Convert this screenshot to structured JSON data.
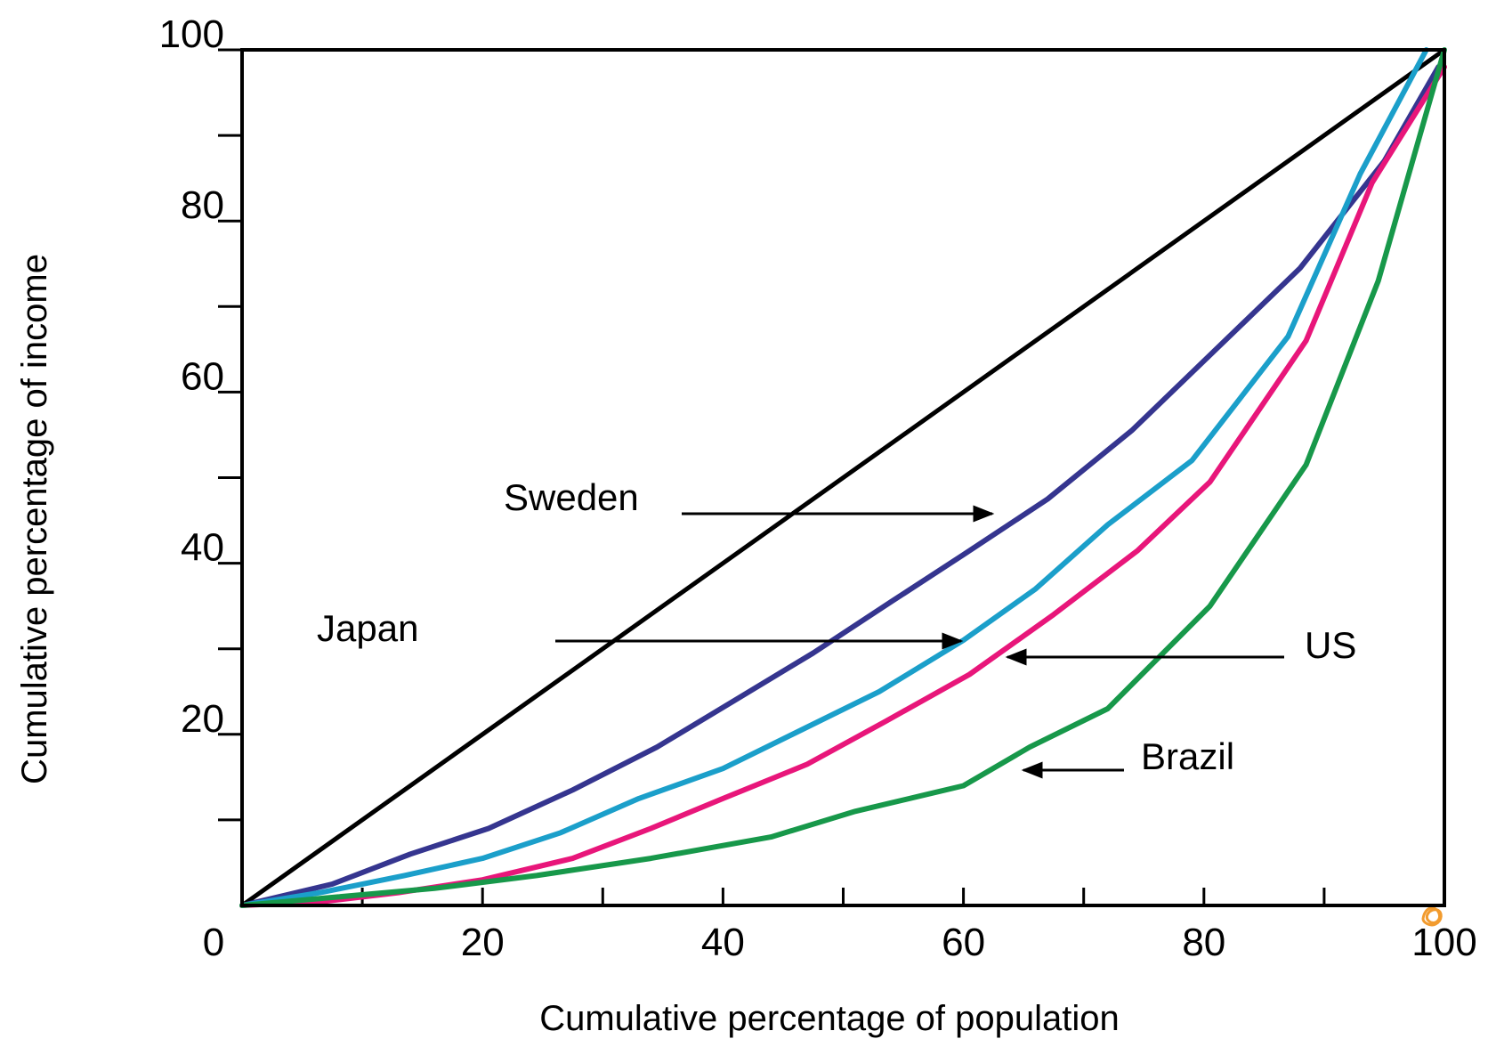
{
  "chart_data": {
    "type": "line",
    "title": "",
    "xlabel": "Cumulative percentage of population",
    "ylabel": "Cumulative percentage of income",
    "xlim": [
      0,
      100
    ],
    "ylim": [
      0,
      100
    ],
    "x_tick_labels": [
      "0",
      "20",
      "40",
      "60",
      "80",
      "100"
    ],
    "y_tick_labels": [
      "20",
      "40",
      "60",
      "80",
      "100"
    ],
    "x_minor_ticks": [
      10,
      20,
      30,
      40,
      50,
      60,
      70,
      80,
      90
    ],
    "y_minor_ticks": [
      10,
      20,
      30,
      40,
      50,
      60,
      70,
      80,
      90
    ],
    "grid": false,
    "series": [
      {
        "name": "",
        "color": "#000000",
        "x": [
          0,
          100
        ],
        "y": [
          0,
          100
        ]
      },
      {
        "name": "Sweden",
        "color": "#35358f",
        "x": [
          0,
          7.5,
          14,
          20.5,
          27.5,
          34.5,
          41,
          47.5,
          54,
          60,
          67,
          74,
          81,
          88,
          95,
          99.5
        ],
        "y": [
          0,
          2.5,
          6,
          9,
          13.5,
          18.5,
          24,
          29.5,
          35.5,
          41,
          47.5,
          55.5,
          65,
          74.5,
          87,
          98
        ]
      },
      {
        "name": "Japan",
        "color": "#1b9fca",
        "x": [
          0,
          6.5,
          13.5,
          20,
          26.5,
          33,
          40,
          46.5,
          53,
          60,
          66,
          72,
          79,
          87,
          93,
          98.5
        ],
        "y": [
          0,
          1.5,
          3.5,
          5.5,
          8.5,
          12.5,
          16,
          20.5,
          25,
          31,
          37,
          44.5,
          52,
          66.5,
          85.5,
          100
        ]
      },
      {
        "name": "US",
        "color": "#e8167a",
        "x": [
          0,
          7,
          13,
          20,
          27.5,
          34,
          40,
          47,
          53.5,
          60.5,
          67.5,
          74.5,
          80.5,
          88.5,
          94,
          100
        ],
        "y": [
          0,
          0.5,
          1.5,
          3,
          5.5,
          9,
          12.5,
          16.5,
          21.5,
          27,
          34,
          41.5,
          49.5,
          66,
          84.5,
          98
        ]
      },
      {
        "name": "Brazil",
        "color": "#17984a",
        "x": [
          0,
          8,
          16,
          24.5,
          34,
          44,
          51,
          60,
          65.5,
          72,
          80.5,
          88.5,
          94.5,
          100
        ],
        "y": [
          0,
          1,
          2,
          3.5,
          5.5,
          8,
          11,
          14,
          18.5,
          23,
          35,
          51.5,
          73,
          100
        ]
      }
    ],
    "annotations": [
      {
        "label": "Sweden",
        "series": "Sweden"
      },
      {
        "label": "Japan",
        "series": "Japan"
      },
      {
        "label": "US",
        "series": "US"
      },
      {
        "label": "Brazil",
        "series": "Brazil"
      }
    ],
    "marker": {
      "icon": "orange-scribble-icon",
      "color": "#f29b2e"
    }
  }
}
